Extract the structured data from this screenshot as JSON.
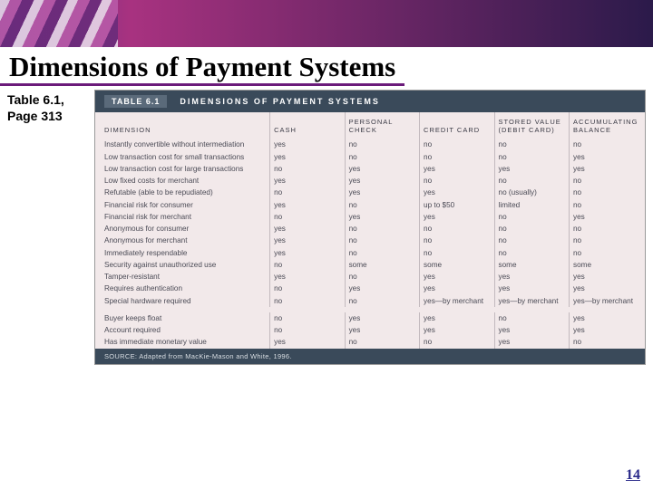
{
  "title": "Dimensions of Payment Systems",
  "sidebar": {
    "line1": "Table 6.1,",
    "line2": "Page 313"
  },
  "page_number": "14",
  "table": {
    "label": "TABLE 6.1",
    "caption": "DIMENSIONS OF PAYMENT SYSTEMS",
    "columns": [
      "DIMENSION",
      "CASH",
      "PERSONAL CHECK",
      "CREDIT CARD",
      "STORED VALUE (DEBIT CARD)",
      "ACCUMULATING BALANCE"
    ],
    "rows": [
      [
        "Instantly convertible without intermediation",
        "yes",
        "no",
        "no",
        "no",
        "no"
      ],
      [
        "Low transaction cost for small transactions",
        "yes",
        "no",
        "no",
        "no",
        "yes"
      ],
      [
        "Low transaction cost for large transactions",
        "no",
        "yes",
        "yes",
        "yes",
        "yes"
      ],
      [
        "Low fixed costs for merchant",
        "yes",
        "yes",
        "no",
        "no",
        "no"
      ],
      [
        "Refutable (able to be repudiated)",
        "no",
        "yes",
        "yes",
        "no (usually)",
        "no"
      ],
      [
        "Financial risk for consumer",
        "yes",
        "no",
        "up to $50",
        "limited",
        "no"
      ],
      [
        "Financial risk for merchant",
        "no",
        "yes",
        "yes",
        "no",
        "yes"
      ],
      [
        "Anonymous for consumer",
        "yes",
        "no",
        "no",
        "no",
        "no"
      ],
      [
        "Anonymous for merchant",
        "yes",
        "no",
        "no",
        "no",
        "no"
      ],
      [
        "Immediately respendable",
        "yes",
        "no",
        "no",
        "no",
        "no"
      ],
      [
        "Security against unauthorized use",
        "no",
        "some",
        "some",
        "some",
        "some"
      ],
      [
        "Tamper-resistant",
        "yes",
        "no",
        "yes",
        "yes",
        "yes"
      ],
      [
        "Requires authentication",
        "no",
        "yes",
        "yes",
        "yes",
        "yes"
      ],
      [
        "Special hardware required",
        "no",
        "no",
        "yes—by merchant",
        "yes—by merchant",
        "yes—by merchant"
      ]
    ],
    "rows2": [
      [
        "Buyer keeps float",
        "no",
        "yes",
        "yes",
        "no",
        "yes"
      ],
      [
        "Account required",
        "no",
        "yes",
        "yes",
        "yes",
        "yes"
      ],
      [
        "Has immediate monetary value",
        "yes",
        "no",
        "no",
        "yes",
        "no"
      ]
    ],
    "source": "SOURCE: Adapted from MacKie-Mason and White, 1996."
  },
  "styling": {
    "title_underline_color": "#6b1b7a",
    "header_bar_bg": "#3a4a5a",
    "table_bg": "#f2e9ea",
    "text_color": "#4a4a55",
    "page_num_color": "#2a2a8a"
  }
}
